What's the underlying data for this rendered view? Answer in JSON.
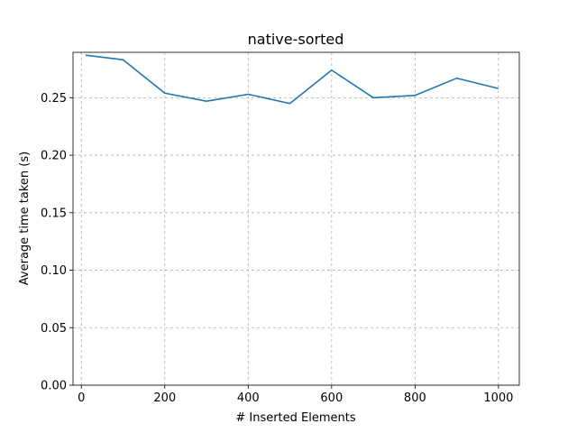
{
  "chart_data": {
    "type": "line",
    "title": "native-sorted",
    "xlabel": "# Inserted Elements",
    "ylabel": "Average time taken (s)",
    "xlim": [
      -20,
      1050
    ],
    "ylim": [
      0,
      0.2895
    ],
    "xticks": [
      0,
      200,
      400,
      600,
      800,
      1000
    ],
    "yticks": [
      0.0,
      0.05,
      0.1,
      0.15,
      0.2,
      0.25
    ],
    "xtick_labels": [
      "0",
      "200",
      "400",
      "600",
      "800",
      "1000"
    ],
    "ytick_labels": [
      "0.00",
      "0.05",
      "0.10",
      "0.15",
      "0.20",
      "0.25"
    ],
    "grid": true,
    "line_color": "#1f77b4",
    "series": [
      {
        "x": [
          10,
          100,
          200,
          300,
          400,
          500,
          600,
          700,
          800,
          900,
          1000
        ],
        "values": [
          0.287,
          0.283,
          0.254,
          0.247,
          0.253,
          0.245,
          0.274,
          0.25,
          0.252,
          0.267,
          0.258
        ]
      }
    ]
  }
}
